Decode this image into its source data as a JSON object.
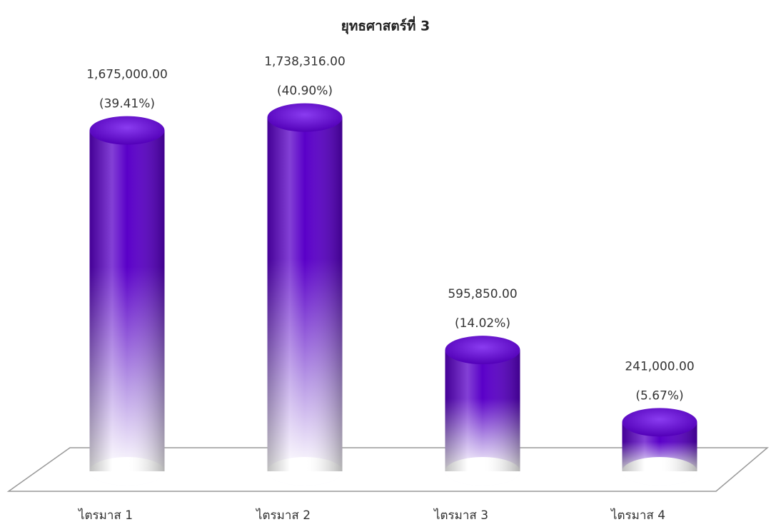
{
  "chart_data": {
    "type": "bar",
    "title": "ยุทธศาสตร์ที่ 3",
    "categories": [
      "ไตรมาส 1",
      "ไตรมาส 2",
      "ไตรมาส 3",
      "ไตรมาส 4"
    ],
    "values": [
      1675000,
      1738316,
      595850,
      241000
    ],
    "value_labels": [
      "1,675,000.00",
      "1,738,316.00",
      "595,850.00",
      "241,000.00"
    ],
    "percents": [
      39.41,
      40.9,
      14.02,
      5.67
    ],
    "percent_labels": [
      "(39.41%)",
      "(40.90%)",
      "(14.02%)",
      "(5.67%)"
    ],
    "color": "#5a00c8",
    "ylim": [
      0,
      1800000
    ]
  }
}
